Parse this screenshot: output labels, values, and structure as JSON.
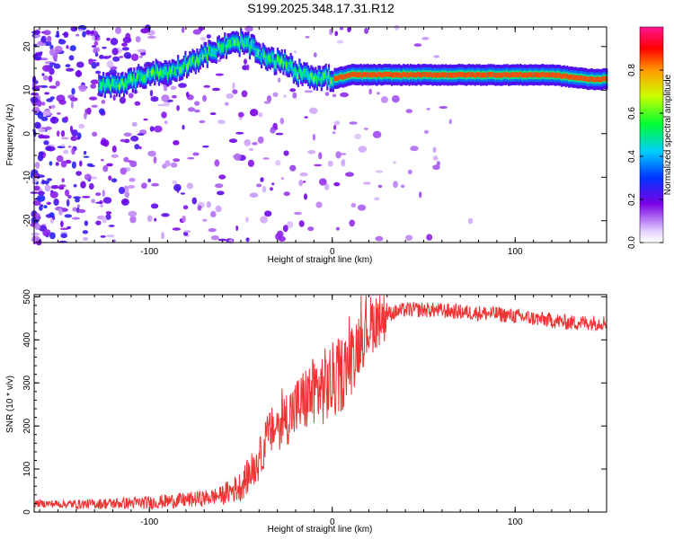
{
  "title": "S199.2025.348.17.31.R12",
  "colors": {
    "snr_line": "#ee3333",
    "axis": "#000000",
    "background": "#ffffff"
  },
  "chart_data": [
    {
      "type": "heatmap",
      "name": "spectrogram",
      "xlabel": "Height of straight line (km)",
      "ylabel": "Frequency (Hz)",
      "xlim": [
        -163,
        150
      ],
      "ylim": [
        -25,
        24.5
      ],
      "x_ticks": [
        -100,
        0,
        100
      ],
      "x_tick_labels": [
        "-100",
        "0",
        "100"
      ],
      "y_ticks": [
        -20,
        -10,
        0,
        10,
        20
      ],
      "y_tick_labels": [
        "-20",
        "-10",
        "0",
        "10",
        "20"
      ],
      "ridge": {
        "x": [
          -125,
          -110,
          -100,
          -90,
          -80,
          -70,
          -60,
          -50,
          -45,
          -40,
          -35,
          -30,
          -25,
          -20,
          -15,
          -10,
          -5,
          0,
          5,
          10,
          20,
          40,
          60,
          80,
          100,
          120,
          140,
          150
        ],
        "freq": [
          11,
          12,
          14,
          14,
          16,
          18,
          20,
          21,
          20,
          18,
          17,
          16.5,
          16,
          14,
          14,
          13,
          13,
          12.5,
          13,
          13.5,
          13.5,
          13.5,
          13.5,
          13.5,
          13.5,
          13.5,
          12.5,
          12.5
        ]
      },
      "colorbar": {
        "label": "Normalized spectral amplitude",
        "min": 0.0,
        "max": 1.0,
        "ticks": [
          0.0,
          0.2,
          0.4,
          0.6,
          0.8
        ],
        "tick_labels": [
          "0.0",
          "0.2",
          "0.4",
          "0.6",
          "0.8"
        ]
      }
    },
    {
      "type": "line",
      "name": "snr",
      "xlabel": "Height of straight line (km)",
      "ylabel": "SNR (10 * v/v)",
      "xlim": [
        -163,
        150
      ],
      "ylim": [
        0,
        505
      ],
      "x_ticks": [
        -100,
        0,
        100
      ],
      "x_tick_labels": [
        "-100",
        "0",
        "100"
      ],
      "y_ticks": [
        0,
        100,
        200,
        300,
        400,
        500
      ],
      "y_tick_labels": [
        "0",
        "100",
        "200",
        "300",
        "400",
        "500"
      ],
      "series": [
        {
          "name": "SNR",
          "x": [
            -163,
            -140,
            -120,
            -100,
            -80,
            -70,
            -60,
            -50,
            -40,
            -35,
            -30,
            -25,
            -20,
            -15,
            -10,
            -5,
            0,
            5,
            10,
            15,
            20,
            25,
            30,
            35,
            40,
            50,
            60,
            70,
            80,
            90,
            100,
            110,
            120,
            130,
            140,
            150
          ],
          "values": [
            20,
            18,
            20,
            22,
            28,
            32,
            40,
            60,
            120,
            180,
            200,
            220,
            240,
            260,
            280,
            290,
            300,
            320,
            350,
            400,
            430,
            450,
            460,
            465,
            470,
            470,
            468,
            465,
            462,
            460,
            455,
            450,
            445,
            440,
            440,
            440
          ]
        }
      ]
    }
  ]
}
